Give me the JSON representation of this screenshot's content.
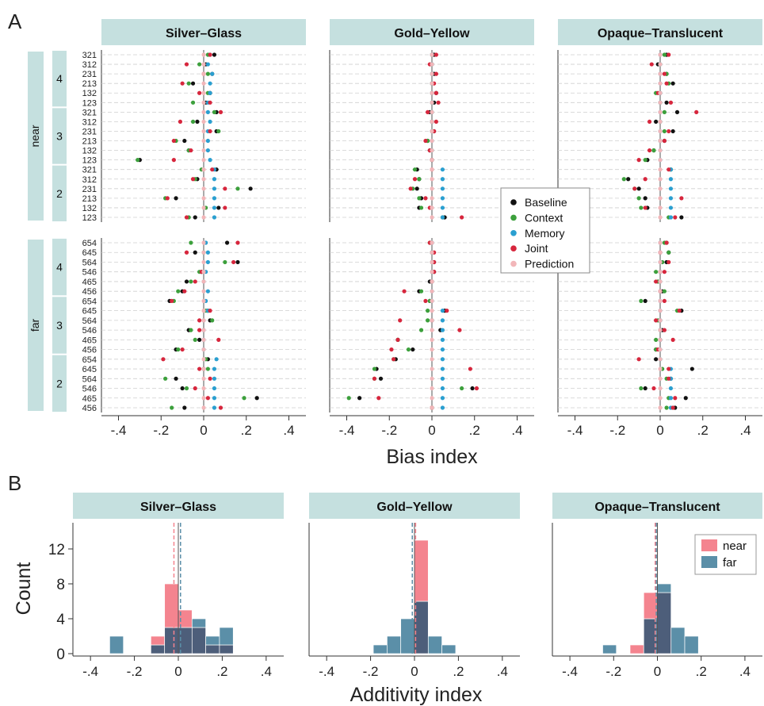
{
  "figure": {
    "panel_a_letter": "A",
    "panel_b_letter": "B",
    "colors": {
      "strip": "#c5e0df",
      "baseline": "#111111",
      "context": "#3ca03c",
      "memory": "#2a9fd0",
      "joint": "#d7263d",
      "prediction": "#f2b6b9",
      "near": "#f4848f",
      "far": "#5b8fa8",
      "overlap": "#4d5e7a"
    }
  },
  "chart_data": [
    {
      "type": "scatter",
      "panel": "A",
      "xlabel": "Bias index",
      "xlim": [
        -0.48,
        0.48
      ],
      "xticks": [
        -0.4,
        -0.2,
        0,
        0.2,
        0.4
      ],
      "xtick_labels": [
        "-.4",
        "-.2",
        "0",
        ".2",
        ".4"
      ],
      "facets": [
        "Silver–Glass",
        "Gold–Yellow",
        "Opaque–Translucent"
      ],
      "legend": {
        "position": "center-right",
        "items": [
          "Baseline",
          "Context",
          "Memory",
          "Joint",
          "Prediction"
        ]
      },
      "groups": [
        {
          "name": "near",
          "subgroups": [
            {
              "name": "4",
              "rows": [
                "321",
                "312",
                "231",
                "213",
                "132",
                "123"
              ]
            },
            {
              "name": "3",
              "rows": [
                "321",
                "312",
                "231",
                "213",
                "132",
                "123"
              ]
            },
            {
              "name": "2",
              "rows": [
                "321",
                "312",
                "231",
                "213",
                "132",
                "123"
              ]
            }
          ]
        },
        {
          "name": "far",
          "subgroups": [
            {
              "name": "4",
              "rows": [
                "654",
                "645",
                "564",
                "546",
                "465",
                "456"
              ]
            },
            {
              "name": "3",
              "rows": [
                "654",
                "645",
                "564",
                "546",
                "465",
                "456"
              ]
            },
            {
              "name": "2",
              "rows": [
                "654",
                "645",
                "564",
                "546",
                "465",
                "456"
              ]
            }
          ]
        }
      ],
      "series_order": [
        "Baseline",
        "Context",
        "Memory",
        "Joint",
        "Prediction"
      ],
      "values": {
        "Silver–Glass": [
          [
            0,
            0.02,
            0.03,
            0.03,
            0.05
          ],
          [
            0,
            -0.02,
            0.02,
            -0.08,
            0.01
          ],
          [
            0,
            0.02,
            0.04,
            0.0,
            0.04
          ],
          [
            0,
            -0.07,
            0.03,
            -0.1,
            -0.05
          ],
          [
            0,
            0.02,
            0.03,
            -0.02,
            0.03
          ],
          [
            0,
            -0.05,
            0.02,
            0.03,
            0.01
          ],
          [
            0,
            0.05,
            0.02,
            0.08,
            0.06
          ],
          [
            0,
            -0.05,
            0.03,
            -0.11,
            -0.03
          ],
          [
            0,
            0.07,
            0.02,
            0.03,
            0.06
          ],
          [
            0,
            -0.13,
            0.02,
            -0.14,
            -0.09
          ],
          [
            0,
            -0.07,
            0.02,
            -0.06,
            -0.07
          ],
          [
            0,
            -0.31,
            0.03,
            -0.14,
            -0.3
          ],
          [
            0,
            -0.01,
            0.05,
            0.04,
            0.06
          ],
          [
            0,
            -0.04,
            0.05,
            -0.05,
            -0.03
          ],
          [
            0,
            0.16,
            0.05,
            0.1,
            0.22
          ],
          [
            0,
            -0.18,
            0.05,
            -0.17,
            -0.13
          ],
          [
            0,
            0.01,
            0.05,
            0.1,
            0.07
          ],
          [
            0,
            -0.07,
            0.05,
            -0.08,
            -0.04
          ],
          [
            0,
            -0.06,
            0.01,
            0.16,
            0.11
          ],
          [
            0,
            0.0,
            0.02,
            -0.08,
            -0.04
          ],
          [
            0,
            0.1,
            0.02,
            0.14,
            0.16
          ],
          [
            0,
            -0.02,
            0.01,
            -0.01,
            -0.01
          ],
          [
            0,
            -0.06,
            0.0,
            -0.04,
            -0.08
          ],
          [
            0,
            -0.12,
            0.02,
            -0.09,
            -0.1
          ],
          [
            0,
            -0.14,
            0.01,
            -0.15,
            -0.16
          ],
          [
            0,
            0.01,
            0.02,
            0.03,
            0.02
          ],
          [
            0,
            0.04,
            0.0,
            -0.02,
            0.03
          ],
          [
            0,
            -0.06,
            0.0,
            -0.02,
            -0.07
          ],
          [
            0,
            -0.04,
            0.0,
            0.07,
            -0.02
          ],
          [
            0,
            -0.12,
            0.0,
            -0.1,
            -0.13
          ],
          [
            0,
            0.01,
            0.06,
            -0.19,
            0.02
          ],
          [
            0,
            0.02,
            0.05,
            -0.02,
            0.0
          ],
          [
            0,
            -0.18,
            0.05,
            0.03,
            -0.13
          ],
          [
            0,
            -0.08,
            0.05,
            -0.04,
            -0.1
          ],
          [
            0,
            0.19,
            0.05,
            0.02,
            0.25
          ],
          [
            0,
            -0.15,
            0.05,
            0.08,
            -0.09
          ]
        ],
        "Gold–Yellow": [
          [
            0,
            0.0,
            0.0,
            0.02,
            0.01
          ],
          [
            0,
            0.0,
            0.0,
            -0.01,
            0.0
          ],
          [
            0,
            0.0,
            0.0,
            0.02,
            0.01
          ],
          [
            0,
            0.0,
            0.0,
            0.01,
            0.0
          ],
          [
            0,
            0.0,
            0.0,
            0.02,
            0.02
          ],
          [
            0,
            0.0,
            0.0,
            0.03,
            0.01
          ],
          [
            0,
            0.0,
            0.0,
            -0.02,
            -0.01
          ],
          [
            0,
            0.0,
            0.0,
            0.02,
            0.0
          ],
          [
            0,
            0.0,
            0.0,
            0.01,
            0.01
          ],
          [
            0,
            -0.02,
            0.0,
            -0.03,
            -0.02
          ],
          [
            0,
            0.0,
            0.0,
            -0.01,
            -0.01
          ],
          [
            0,
            0.0,
            0.0,
            0.0,
            0.0
          ],
          [
            0,
            -0.08,
            0.05,
            0.0,
            -0.07
          ],
          [
            0,
            -0.06,
            0.05,
            -0.08,
            -0.06
          ],
          [
            0,
            -0.09,
            0.05,
            -0.1,
            -0.07
          ],
          [
            0,
            -0.06,
            0.05,
            -0.03,
            -0.05
          ],
          [
            0,
            -0.05,
            0.05,
            -0.01,
            -0.06
          ],
          [
            0,
            0.05,
            0.05,
            0.14,
            0.06
          ],
          [
            0,
            -0.01,
            0.0,
            -0.01,
            0.0
          ],
          [
            0,
            0.0,
            0.0,
            0.01,
            0.0
          ],
          [
            0,
            0.0,
            0.0,
            0.01,
            0.01
          ],
          [
            0,
            0.0,
            0.0,
            0.01,
            0.01
          ],
          [
            0,
            0.0,
            0.0,
            0.0,
            -0.01
          ],
          [
            0,
            -0.05,
            0.0,
            -0.13,
            -0.06
          ],
          [
            0,
            -0.01,
            0.0,
            -0.03,
            -0.01
          ],
          [
            0,
            -0.02,
            0.05,
            0.07,
            0.06
          ],
          [
            0,
            -0.02,
            0.05,
            -0.15,
            0.0
          ],
          [
            0,
            -0.05,
            0.05,
            0.13,
            0.04
          ],
          [
            0,
            -0.16,
            0.05,
            -0.16,
            -0.16
          ],
          [
            0,
            -0.11,
            0.05,
            -0.19,
            -0.09
          ],
          [
            0,
            -0.18,
            0.05,
            -0.18,
            -0.17
          ],
          [
            0,
            -0.27,
            0.05,
            0.18,
            -0.26
          ],
          [
            0,
            -0.27,
            0.05,
            -0.27,
            -0.24
          ],
          [
            0,
            0.14,
            0.05,
            0.21,
            0.19
          ],
          [
            0,
            -0.39,
            0.05,
            -0.25,
            -0.34
          ],
          [
            0,
            0.0,
            0.05,
            0.0,
            0.0
          ]
        ],
        "Opaque–Translucent": [
          [
            0,
            0.02,
            0.0,
            0.04,
            0.03
          ],
          [
            0,
            0.0,
            0.0,
            -0.04,
            -0.01
          ],
          [
            0,
            0.03,
            0.0,
            0.02,
            0.03
          ],
          [
            0,
            0.04,
            0.0,
            0.03,
            0.06
          ],
          [
            0,
            -0.02,
            0.0,
            -0.01,
            0.0
          ],
          [
            0,
            0.0,
            0.0,
            0.05,
            0.03
          ],
          [
            0,
            0.02,
            0.0,
            0.17,
            0.08
          ],
          [
            0,
            0.0,
            0.0,
            -0.05,
            -0.02
          ],
          [
            0,
            0.02,
            0.0,
            0.04,
            0.06
          ],
          [
            0,
            0.0,
            0.0,
            0.02,
            0.02
          ],
          [
            0,
            -0.03,
            0.0,
            -0.05,
            -0.03
          ],
          [
            0,
            -0.07,
            0.0,
            -0.1,
            -0.06
          ],
          [
            0,
            0.05,
            0.05,
            0.04,
            0.05
          ],
          [
            0,
            -0.17,
            0.05,
            -0.07,
            -0.15
          ],
          [
            0,
            -0.12,
            0.05,
            -0.12,
            -0.1
          ],
          [
            0,
            -0.1,
            0.05,
            0.1,
            -0.07
          ],
          [
            0,
            -0.09,
            0.05,
            -0.07,
            -0.06
          ],
          [
            0,
            0.04,
            0.05,
            0.07,
            0.1
          ],
          [
            0,
            0.02,
            0.0,
            0.03,
            0.03
          ],
          [
            0,
            0.04,
            0.0,
            0.0,
            0.04
          ],
          [
            0,
            0.01,
            0.0,
            0.04,
            0.03
          ],
          [
            0,
            -0.02,
            0.0,
            0.02,
            0.0
          ],
          [
            0,
            -0.01,
            0.0,
            -0.02,
            -0.01
          ],
          [
            0,
            0.02,
            0.0,
            0.0,
            0.01
          ],
          [
            0,
            -0.09,
            0.0,
            0.02,
            -0.07
          ],
          [
            0,
            0.08,
            0.0,
            0.09,
            0.1
          ],
          [
            0,
            -0.01,
            0.0,
            -0.02,
            0.0
          ],
          [
            0,
            0.0,
            0.0,
            0.02,
            0.01
          ],
          [
            0,
            -0.02,
            0.0,
            0.06,
            0.0
          ],
          [
            0,
            -0.02,
            0.0,
            -0.01,
            -0.02
          ],
          [
            0,
            0.0,
            0.0,
            -0.1,
            -0.02
          ],
          [
            0,
            0.01,
            0.05,
            0.04,
            0.15
          ],
          [
            0,
            0.03,
            0.05,
            0.04,
            0.05
          ],
          [
            0,
            -0.09,
            0.05,
            -0.03,
            -0.07
          ],
          [
            0,
            0.04,
            0.05,
            0.07,
            0.12
          ],
          [
            0,
            0.03,
            0.05,
            0.06,
            0.07
          ]
        ]
      }
    },
    {
      "type": "histogram",
      "panel": "B",
      "xlabel": "Additivity index",
      "ylabel": "Count",
      "xlim": [
        -0.48,
        0.48
      ],
      "xticks": [
        -0.4,
        -0.2,
        0,
        0.2,
        0.4
      ],
      "xtick_labels": [
        "-.4",
        "-.2",
        "0",
        ".2",
        ".4"
      ],
      "ylim": [
        0,
        15
      ],
      "yticks": [
        0,
        4,
        8,
        12
      ],
      "bin_width": 0.0625,
      "bin_edges": [
        -0.3125,
        -0.25,
        -0.1875,
        -0.125,
        -0.0625,
        0,
        0.0625,
        0.125,
        0.1875,
        0.25
      ],
      "legend": {
        "position": "top-right",
        "items": [
          "near",
          "far"
        ]
      },
      "facets": [
        {
          "title": "Silver–Glass",
          "near": [
            0,
            0,
            0,
            2,
            8,
            5,
            3,
            1,
            1
          ],
          "far": [
            2,
            0,
            0,
            1,
            3,
            3,
            4,
            2,
            3
          ],
          "mean_near": -0.02,
          "mean_far": 0.01
        },
        {
          "title": "Gold–Yellow",
          "near": [
            0,
            0,
            0,
            0,
            0,
            13,
            0,
            0,
            0
          ],
          "far": [
            0,
            0,
            1,
            2,
            4,
            6,
            2,
            1,
            0
          ],
          "mean_near": 0.005,
          "mean_far": -0.01
        },
        {
          "title": "Opaque–Translucent",
          "near": [
            0,
            0,
            0,
            1,
            7,
            7,
            0,
            0,
            0
          ],
          "far": [
            0,
            1,
            0,
            0,
            4,
            8,
            3,
            2,
            0
          ],
          "mean_near": -0.01,
          "mean_far": -0.005
        }
      ]
    }
  ]
}
